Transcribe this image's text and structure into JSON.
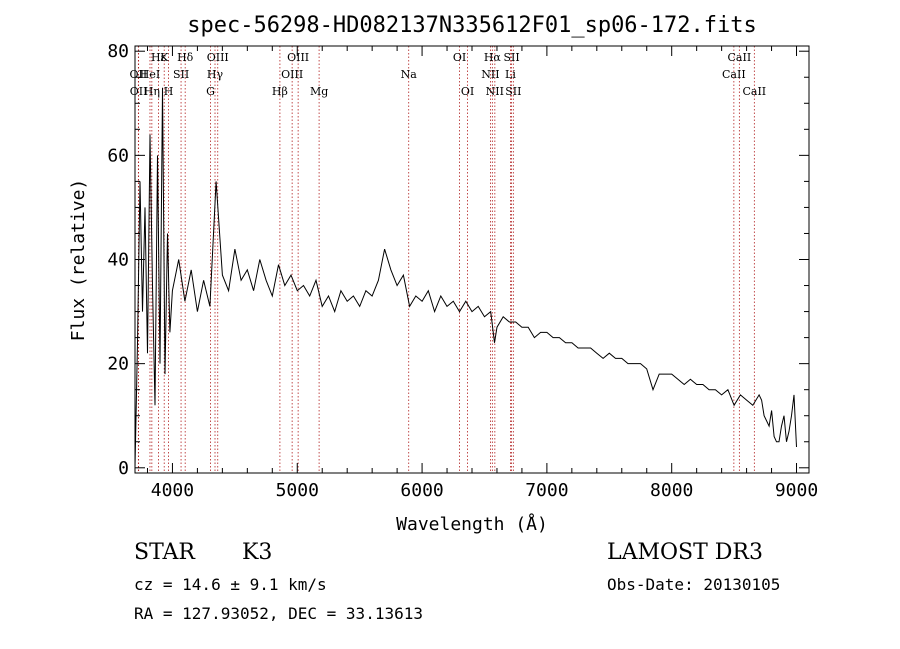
{
  "chart_data": {
    "type": "line",
    "title": "spec-56298-HD082137N335612F01_sp06-172.fits",
    "xlabel": "Wavelength (Å)",
    "ylabel": "Flux (relative)",
    "xlim": [
      3700,
      9100
    ],
    "ylim": [
      -1,
      81
    ],
    "xticks": [
      4000,
      5000,
      6000,
      7000,
      8000,
      9000
    ],
    "yticks": [
      0,
      20,
      40,
      60,
      80
    ],
    "grid": false,
    "line_color": "#000000",
    "marker_color": "#b22222",
    "spectrum": {
      "x": [
        3700,
        3720,
        3740,
        3760,
        3780,
        3800,
        3820,
        3840,
        3860,
        3880,
        3900,
        3920,
        3940,
        3960,
        3980,
        4000,
        4050,
        4100,
        4150,
        4200,
        4250,
        4300,
        4350,
        4400,
        4450,
        4500,
        4550,
        4600,
        4650,
        4700,
        4750,
        4800,
        4850,
        4900,
        4950,
        5000,
        5050,
        5100,
        5150,
        5200,
        5250,
        5300,
        5350,
        5400,
        5450,
        5500,
        5550,
        5600,
        5650,
        5700,
        5750,
        5800,
        5850,
        5900,
        5950,
        6000,
        6050,
        6100,
        6150,
        6200,
        6250,
        6300,
        6350,
        6400,
        6450,
        6500,
        6550,
        6580,
        6600,
        6650,
        6700,
        6750,
        6800,
        6850,
        6900,
        6950,
        7000,
        7050,
        7100,
        7150,
        7200,
        7250,
        7300,
        7350,
        7400,
        7450,
        7500,
        7550,
        7600,
        7650,
        7700,
        7750,
        7800,
        7850,
        7900,
        7950,
        8000,
        8050,
        8100,
        8150,
        8200,
        8250,
        8300,
        8350,
        8400,
        8450,
        8500,
        8550,
        8600,
        8650,
        8700,
        8720,
        8740,
        8760,
        8780,
        8800,
        8820,
        8840,
        8860,
        8880,
        8900,
        8920,
        8940,
        8960,
        8980,
        9000
      ],
      "y": [
        0,
        24,
        55,
        30,
        50,
        22,
        64,
        35,
        12,
        60,
        20,
        73,
        18,
        45,
        26,
        34,
        40,
        32,
        38,
        30,
        36,
        31,
        55,
        37,
        34,
        42,
        36,
        38,
        34,
        40,
        36,
        33,
        39,
        35,
        37,
        34,
        35,
        33,
        36,
        31,
        33,
        30,
        34,
        32,
        33,
        31,
        34,
        33,
        36,
        42,
        38,
        35,
        37,
        31,
        33,
        32,
        34,
        30,
        33,
        31,
        32,
        30,
        32,
        30,
        31,
        29,
        30,
        24,
        27,
        29,
        28,
        28,
        27,
        27,
        25,
        26,
        26,
        25,
        25,
        24,
        24,
        23,
        23,
        23,
        22,
        21,
        22,
        21,
        21,
        20,
        20,
        20,
        19,
        15,
        18,
        18,
        18,
        17,
        16,
        17,
        16,
        16,
        15,
        15,
        14,
        15,
        12,
        14,
        13,
        12,
        14,
        13,
        10,
        9,
        8,
        11,
        6,
        5,
        5,
        8,
        10,
        5,
        7,
        10,
        14,
        4
      ]
    },
    "lines": [
      {
        "name": "Hε",
        "wave": 3889,
        "row": 0
      },
      {
        "name": "K",
        "wave": 3934,
        "row": 0
      },
      {
        "name": "Hδ",
        "wave": 4102,
        "row": 0
      },
      {
        "name": "OIII",
        "wave": 4363,
        "row": 0
      },
      {
        "name": "OIII",
        "wave": 5007,
        "row": 0
      },
      {
        "name": "OI",
        "wave": 6300,
        "row": 0
      },
      {
        "name": "Hα",
        "wave": 6563,
        "row": 0
      },
      {
        "name": "SII",
        "wave": 6717,
        "row": 0
      },
      {
        "name": "CaII",
        "wave": 8542,
        "row": 0
      },
      {
        "name": "OII",
        "wave": 3727,
        "row": 1
      },
      {
        "name": "HeI",
        "wave": 3820,
        "row": 1
      },
      {
        "name": "SII",
        "wave": 4069,
        "row": 1
      },
      {
        "name": "Hγ",
        "wave": 4341,
        "row": 1
      },
      {
        "name": "OIII",
        "wave": 4959,
        "row": 1
      },
      {
        "name": "Na",
        "wave": 5893,
        "row": 1
      },
      {
        "name": "NII",
        "wave": 6548,
        "row": 1
      },
      {
        "name": "Li",
        "wave": 6708,
        "row": 1
      },
      {
        "name": "CaII",
        "wave": 8498,
        "row": 1
      },
      {
        "name": "OII",
        "wave": 3729,
        "row": 2
      },
      {
        "name": "Hη",
        "wave": 3835,
        "row": 2
      },
      {
        "name": "H",
        "wave": 3969,
        "row": 2
      },
      {
        "name": "G",
        "wave": 4305,
        "row": 2
      },
      {
        "name": "Hβ",
        "wave": 4861,
        "row": 2
      },
      {
        "name": "Mg",
        "wave": 5175,
        "row": 2
      },
      {
        "name": "OI",
        "wave": 6364,
        "row": 2
      },
      {
        "name": "NII",
        "wave": 6583,
        "row": 2
      },
      {
        "name": "SII",
        "wave": 6731,
        "row": 2
      },
      {
        "name": "CaII",
        "wave": 8662,
        "row": 2
      }
    ]
  },
  "info": {
    "class_label": "STAR",
    "subclass": "K3",
    "survey": "LAMOST DR3",
    "cz": "cz = 14.6 ± 9.1 km/s",
    "obs_date": "Obs-Date: 20130105",
    "radec": "RA = 127.93052, DEC =  33.13613"
  }
}
